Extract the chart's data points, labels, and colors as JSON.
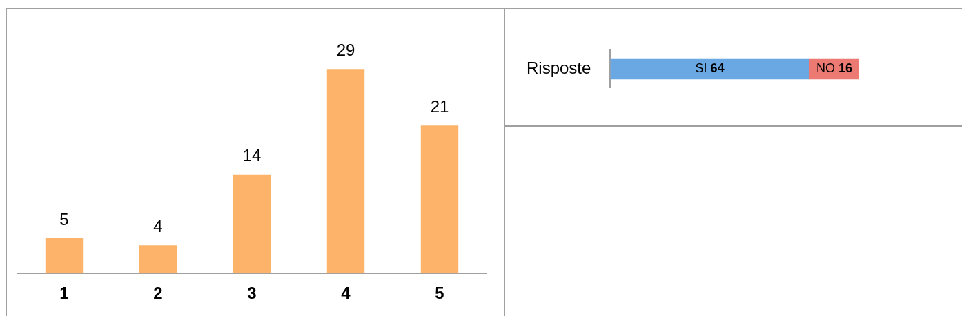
{
  "chart_data": [
    {
      "type": "bar",
      "categories": [
        "1",
        "2",
        "3",
        "4",
        "5"
      ],
      "values": [
        5,
        4,
        14,
        29,
        21
      ],
      "color": "#fdb36a",
      "data_labels": true,
      "legend": false
    },
    {
      "type": "bar",
      "orientation": "horizontal",
      "stacked": true,
      "categories": [
        "Risposte"
      ],
      "series": [
        {
          "name": "SI",
          "color": "#6aa8e4",
          "values": [
            64
          ]
        },
        {
          "name": "NO",
          "color": "#ec7a72",
          "values": [
            16
          ]
        }
      ],
      "data_labels": true,
      "legend": false
    }
  ]
}
